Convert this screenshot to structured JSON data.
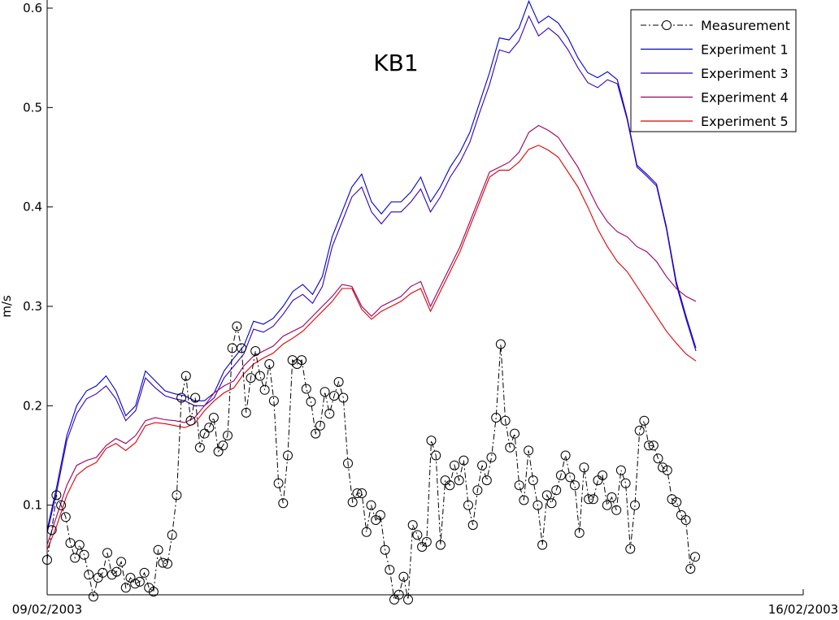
{
  "chart_data": {
    "type": "line",
    "title": "KB1",
    "xlabel": "",
    "ylabel": "m/s",
    "x_tick_labels": [
      "09/02/2003",
      "16/02/2003"
    ],
    "x_range": [
      "09/02/2003",
      "16/02/2003"
    ],
    "ylim": [
      0,
      0.6
    ],
    "y_ticks": [
      0.1,
      0.2,
      0.3,
      0.4,
      0.5,
      0.6
    ],
    "grid": false,
    "legend_position": "top-right",
    "series": [
      {
        "name": "Measurement",
        "style": "dashdot-circles",
        "color": "#000000",
        "values": [
          0.045,
          0.075,
          0.11,
          0.1,
          0.088,
          0.062,
          0.047,
          0.06,
          0.05,
          0.03,
          0.008,
          0.027,
          0.032,
          0.052,
          0.03,
          0.033,
          0.043,
          0.017,
          0.027,
          0.021,
          0.023,
          0.032,
          0.017,
          0.013,
          0.055,
          0.042,
          0.041,
          0.07,
          0.11,
          0.208,
          0.23,
          0.185,
          0.208,
          0.158,
          0.172,
          0.178,
          0.188,
          0.154,
          0.16,
          0.17,
          0.258,
          0.28,
          0.258,
          0.193,
          0.228,
          0.255,
          0.23,
          0.216,
          0.242,
          0.205,
          0.122,
          0.102,
          0.15,
          0.246,
          0.242,
          0.246,
          0.217,
          0.204,
          0.172,
          0.18,
          0.214,
          0.192,
          0.21,
          0.224,
          0.208,
          0.142,
          0.103,
          0.112,
          0.112,
          0.073,
          0.1,
          0.085,
          0.09,
          0.055,
          0.035,
          0.005,
          0.01,
          0.028,
          0.005,
          0.08,
          0.07,
          0.058,
          0.063,
          0.165,
          0.15,
          0.06,
          0.125,
          0.12,
          0.14,
          0.125,
          0.145,
          0.1,
          0.08,
          0.115,
          0.14,
          0.125,
          0.148,
          0.188,
          0.262,
          0.185,
          0.158,
          0.172,
          0.12,
          0.105,
          0.155,
          0.125,
          0.1,
          0.06,
          0.11,
          0.102,
          0.115,
          0.13,
          0.15,
          0.128,
          0.12,
          0.072,
          0.138,
          0.106,
          0.106,
          0.125,
          0.13,
          0.1,
          0.108,
          0.095,
          0.135,
          0.122,
          0.056,
          0.1,
          0.175,
          0.185,
          0.16,
          0.16,
          0.147,
          0.138,
          0.135,
          0.106,
          0.103,
          0.09,
          0.085,
          0.036,
          0.048
        ]
      },
      {
        "name": "Experiment 1",
        "color": "#0000cc",
        "x": [
          0,
          0.05,
          0.2,
          0.35,
          0.6,
          0.8,
          0.95,
          1.1,
          1.25,
          1.4,
          1.55,
          1.7,
          1.8,
          1.9,
          2.0,
          2.1,
          2.2,
          2.3,
          2.35,
          2.45,
          2.55,
          2.65,
          2.75,
          2.85,
          2.95,
          3.05,
          3.15,
          3.25,
          3.35,
          3.45,
          3.55,
          3.6,
          3.7,
          3.8,
          3.9,
          4.0,
          4.1,
          4.2,
          4.3,
          4.35,
          4.45,
          4.5,
          4.6,
          4.7,
          4.8,
          4.9,
          4.95,
          5.05,
          5.15,
          5.25,
          5.3,
          5.4,
          5.5,
          5.6,
          5.7,
          5.8,
          5.9,
          6.0,
          6.1,
          6.2
        ],
        "values": [
          0.075,
          0.11,
          0.19,
          0.213,
          0.195,
          0.228,
          0.22,
          0.205,
          0.235,
          0.255,
          0.28,
          0.275,
          0.295,
          0.318,
          0.315,
          0.356,
          0.38,
          0.42,
          0.415,
          0.395,
          0.405,
          0.41,
          0.41,
          0.425,
          0.41,
          0.43,
          0.455,
          0.485,
          0.53,
          0.565,
          0.56,
          0.58,
          0.598,
          0.585,
          0.59,
          0.585,
          0.565,
          0.548,
          0.535,
          0.53,
          0.53,
          0.533,
          0.525,
          0.485,
          0.44,
          0.43,
          0.425,
          0.38,
          0.32,
          0.285,
          0.26,
          0.253,
          0.253,
          0.253,
          0.253,
          0.253,
          0.253,
          0.253,
          0.253,
          0.253
        ]
      }
    ]
  },
  "legend": [
    {
      "label": "Measurement",
      "color": "#000000",
      "style": "dashdot-circle"
    },
    {
      "label": "Experiment 1",
      "color": "#0000cc",
      "style": "solid"
    },
    {
      "label": "Experiment 3",
      "color": "#3300bb",
      "style": "solid"
    },
    {
      "label": "Experiment 4",
      "color": "#990066",
      "style": "solid"
    },
    {
      "label": "Experiment 5",
      "color": "#dd0000",
      "style": "solid"
    }
  ],
  "model_series": [
    {
      "name": "Experiment 1",
      "color": "#0000cc",
      "values": [
        0.075,
        0.12,
        0.17,
        0.2,
        0.215,
        0.22,
        0.23,
        0.215,
        0.19,
        0.2,
        0.235,
        0.225,
        0.215,
        0.212,
        0.21,
        0.205,
        0.205,
        0.213,
        0.235,
        0.248,
        0.26,
        0.285,
        0.282,
        0.288,
        0.3,
        0.315,
        0.322,
        0.312,
        0.33,
        0.37,
        0.395,
        0.42,
        0.433,
        0.405,
        0.393,
        0.405,
        0.405,
        0.415,
        0.43,
        0.405,
        0.42,
        0.44,
        0.455,
        0.475,
        0.505,
        0.535,
        0.57,
        0.568,
        0.58,
        0.607,
        0.585,
        0.592,
        0.585,
        0.57,
        0.55,
        0.535,
        0.53,
        0.536,
        0.528,
        0.49,
        0.442,
        0.433,
        0.423,
        0.38,
        0.325,
        0.29,
        0.258
      ]
    },
    {
      "name": "Experiment 3",
      "color": "#3300bb",
      "values": [
        0.072,
        0.115,
        0.165,
        0.192,
        0.207,
        0.212,
        0.22,
        0.207,
        0.185,
        0.195,
        0.228,
        0.218,
        0.21,
        0.207,
        0.205,
        0.2,
        0.2,
        0.208,
        0.228,
        0.24,
        0.252,
        0.277,
        0.274,
        0.28,
        0.292,
        0.306,
        0.312,
        0.303,
        0.32,
        0.36,
        0.385,
        0.41,
        0.42,
        0.395,
        0.383,
        0.395,
        0.395,
        0.405,
        0.418,
        0.395,
        0.41,
        0.43,
        0.445,
        0.465,
        0.495,
        0.523,
        0.558,
        0.555,
        0.567,
        0.592,
        0.572,
        0.58,
        0.572,
        0.558,
        0.54,
        0.525,
        0.52,
        0.528,
        0.524,
        0.488,
        0.44,
        0.431,
        0.421,
        0.378,
        0.322,
        0.287,
        0.255
      ]
    },
    {
      "name": "Experiment 4",
      "color": "#990066",
      "values": [
        0.06,
        0.09,
        0.12,
        0.14,
        0.145,
        0.148,
        0.16,
        0.167,
        0.162,
        0.17,
        0.185,
        0.188,
        0.186,
        0.185,
        0.183,
        0.188,
        0.2,
        0.213,
        0.22,
        0.225,
        0.24,
        0.25,
        0.255,
        0.26,
        0.27,
        0.275,
        0.28,
        0.29,
        0.3,
        0.31,
        0.322,
        0.32,
        0.3,
        0.29,
        0.3,
        0.305,
        0.31,
        0.32,
        0.325,
        0.3,
        0.32,
        0.34,
        0.36,
        0.385,
        0.41,
        0.435,
        0.44,
        0.445,
        0.455,
        0.475,
        0.482,
        0.477,
        0.47,
        0.455,
        0.44,
        0.42,
        0.4,
        0.385,
        0.375,
        0.37,
        0.36,
        0.355,
        0.345,
        0.33,
        0.318,
        0.31,
        0.305
      ]
    },
    {
      "name": "Experiment 5",
      "color": "#dd0000",
      "values": [
        0.055,
        0.08,
        0.11,
        0.13,
        0.138,
        0.143,
        0.157,
        0.162,
        0.155,
        0.163,
        0.18,
        0.183,
        0.182,
        0.18,
        0.178,
        0.182,
        0.195,
        0.205,
        0.213,
        0.218,
        0.232,
        0.242,
        0.248,
        0.253,
        0.262,
        0.268,
        0.275,
        0.285,
        0.295,
        0.305,
        0.318,
        0.318,
        0.297,
        0.287,
        0.295,
        0.3,
        0.305,
        0.313,
        0.318,
        0.295,
        0.315,
        0.335,
        0.355,
        0.38,
        0.405,
        0.43,
        0.437,
        0.437,
        0.445,
        0.458,
        0.462,
        0.457,
        0.45,
        0.435,
        0.42,
        0.4,
        0.378,
        0.36,
        0.345,
        0.335,
        0.32,
        0.305,
        0.29,
        0.275,
        0.263,
        0.252,
        0.245
      ]
    }
  ]
}
